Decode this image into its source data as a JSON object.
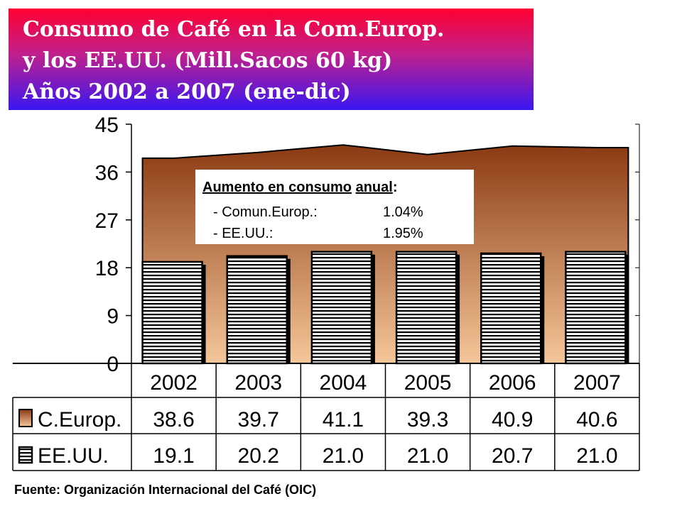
{
  "title_lines": [
    "Consumo de Café en la Com.Europ.",
    "y los EE.UU. (Mill.Sacos 60 kg)",
    "Años 2002 a 2007 (ene-dic)"
  ],
  "source": "Fuente: Organización Internacional del Café (OIC)",
  "annotation": {
    "heading_parts": [
      "Aumento",
      " en ",
      "consumo",
      " ",
      "anual",
      ":"
    ],
    "rows": [
      {
        "label": "- Comun.Europ.:",
        "value": "1.04%"
      },
      {
        "label": "- EE.UU.:",
        "value": "1.95%"
      }
    ]
  },
  "chart_data": {
    "type": "bar",
    "categories": [
      "2002",
      "2003",
      "2004",
      "2005",
      "2006",
      "2007"
    ],
    "y_ticks": [
      "0",
      "9",
      "18",
      "27",
      "36",
      "45"
    ],
    "ylim": [
      0,
      45
    ],
    "grid": false,
    "series": [
      {
        "name": "C.Europ.",
        "kind": "area",
        "values": [
          38.6,
          39.7,
          41.1,
          39.3,
          40.9,
          40.6
        ],
        "labels": [
          "38.6",
          "39.7",
          "41.1",
          "39.3",
          "40.9",
          "40.6"
        ],
        "colors": [
          "#f5c79a",
          "#8b3a13"
        ]
      },
      {
        "name": "EE.UU.",
        "kind": "bar",
        "values": [
          19.1,
          20.2,
          21.0,
          21.0,
          20.7,
          21.0
        ],
        "labels": [
          "19.1",
          "20.2",
          "21.0",
          "21.0",
          "20.7",
          "21.0"
        ],
        "colors": [
          "#ffffff",
          "#000000"
        ]
      }
    ],
    "legend_position": "data-table"
  }
}
